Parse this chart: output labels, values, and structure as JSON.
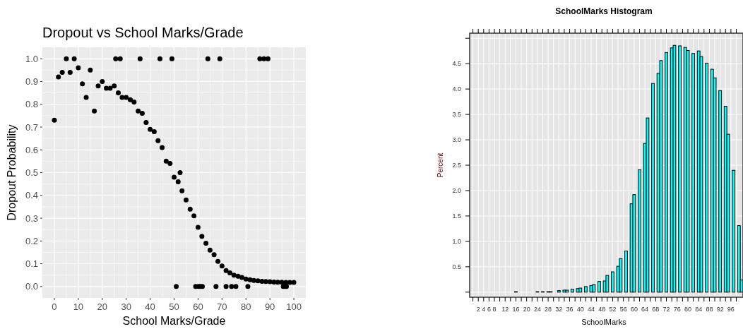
{
  "chart_data": [
    {
      "type": "scatter",
      "title": "Dropout vs School Marks/Grade",
      "xlabel": "School Marks/Grade",
      "ylabel": "Dropout Probability",
      "marker": "circle",
      "grid": true,
      "xlim": [
        -5,
        105
      ],
      "xticks": [
        0,
        10,
        20,
        30,
        40,
        50,
        60,
        70,
        80,
        90,
        100
      ],
      "ylim": [
        -0.05,
        1.05
      ],
      "yticks": [
        {
          "value": 0,
          "label": "0.0"
        },
        {
          "value": 0.1,
          "label": "0.1"
        },
        {
          "value": 0.2,
          "label": "0.2"
        },
        {
          "value": 0.3,
          "label": "0.3"
        },
        {
          "value": 0.4,
          "label": "0.4"
        },
        {
          "value": 0.5,
          "label": "0.5"
        },
        {
          "value": 0.6,
          "label": "0.6"
        },
        {
          "value": 0.7,
          "label": "0.7"
        },
        {
          "value": 0.8,
          "label": "0.8"
        },
        {
          "value": 0.9,
          "label": "0.9"
        },
        {
          "value": 1,
          "label": "1.0"
        }
      ],
      "series": [
        {
          "color": "#000000",
          "x": [
            0,
            1.7,
            3.3,
            5,
            6.6,
            8.3,
            10,
            11.7,
            13.3,
            15,
            16.7,
            18.3,
            20,
            21.7,
            23.3,
            25,
            25.6,
            26.7,
            27.5,
            28.3,
            30,
            31.7,
            33.3,
            35,
            35.8,
            36.7,
            38.3,
            40,
            41.7,
            43.3,
            44.1,
            45,
            46.7,
            48.3,
            49.1,
            50,
            51.7,
            52.5,
            53.3,
            55,
            56.7,
            58.3,
            60,
            61.6,
            63.3,
            65,
            66.7,
            68.3,
            70,
            71.7,
            73.3,
            75,
            76.7,
            78.3,
            80,
            81.7,
            83.3,
            85,
            86.7,
            88.3,
            90,
            91.7,
            93.3,
            95,
            96.7,
            98.3,
            100,
            64.1,
            69.1,
            85.8,
            87.5,
            89.2,
            50.9,
            59,
            60.2,
            61,
            61.8,
            67.5,
            71.7,
            74,
            75.8,
            80.8,
            95.6,
            96.3,
            96.9
          ],
          "values": [
            0.73,
            0.92,
            0.94,
            1,
            0.94,
            1,
            0.96,
            0.89,
            0.83,
            0.95,
            0.77,
            0.88,
            0.9,
            0.87,
            0.87,
            0.88,
            1,
            0.85,
            1,
            0.83,
            0.83,
            0.82,
            0.81,
            0.77,
            1,
            0.76,
            0.72,
            0.69,
            0.68,
            0.64,
            1,
            0.61,
            0.55,
            0.54,
            1,
            0.48,
            0.46,
            0.5,
            0.42,
            0.38,
            0.34,
            0.31,
            0.26,
            0.22,
            0.19,
            0.16,
            0.14,
            0.11,
            0.09,
            0.07,
            0.06,
            0.05,
            0.045,
            0.04,
            0.033,
            0.03,
            0.027,
            0.025,
            0.023,
            0.022,
            0.021,
            0.02,
            0.019,
            0.019,
            0.018,
            0.018,
            0.018,
            1,
            1,
            1,
            1,
            1,
            0,
            0,
            0,
            0,
            0,
            0,
            0,
            0,
            0,
            0,
            0,
            0,
            0
          ]
        }
      ]
    },
    {
      "type": "histogram",
      "title": "SchoolMarks Histogram",
      "xlabel": "SchoolMarks",
      "ylabel": "Percent",
      "grid": true,
      "color": "#00ffff",
      "xlim": [
        -1.2,
        100.5
      ],
      "ylim": [
        -0.1,
        5.1
      ],
      "xticks": [
        {
          "value": 0,
          "label": null
        },
        {
          "value": 2,
          "label": "2"
        },
        {
          "value": 4,
          "label": "4"
        },
        {
          "value": 6,
          "label": "6"
        },
        {
          "value": 8,
          "label": "8"
        },
        {
          "value": 10,
          "label": null
        },
        {
          "value": 12,
          "label": "12"
        },
        {
          "value": 14,
          "label": null
        },
        {
          "value": 16,
          "label": "16"
        },
        {
          "value": 18,
          "label": null
        },
        {
          "value": 20,
          "label": "20"
        },
        {
          "value": 22,
          "label": null
        },
        {
          "value": 24,
          "label": "24"
        },
        {
          "value": 26,
          "label": null
        },
        {
          "value": 28,
          "label": "28"
        },
        {
          "value": 30,
          "label": null
        },
        {
          "value": 32,
          "label": "32"
        },
        {
          "value": 34,
          "label": null
        },
        {
          "value": 36,
          "label": "36"
        },
        {
          "value": 38,
          "label": null
        },
        {
          "value": 40,
          "label": "40"
        },
        {
          "value": 42,
          "label": null
        },
        {
          "value": 44,
          "label": "44"
        },
        {
          "value": 46,
          "label": null
        },
        {
          "value": 48,
          "label": "48"
        },
        {
          "value": 50,
          "label": null
        },
        {
          "value": 52,
          "label": "52"
        },
        {
          "value": 54,
          "label": null
        },
        {
          "value": 56,
          "label": "56"
        },
        {
          "value": 58,
          "label": null
        },
        {
          "value": 60,
          "label": "60"
        },
        {
          "value": 62,
          "label": null
        },
        {
          "value": 64,
          "label": "64"
        },
        {
          "value": 66,
          "label": null
        },
        {
          "value": 68,
          "label": "68"
        },
        {
          "value": 70,
          "label": null
        },
        {
          "value": 72,
          "label": "72"
        },
        {
          "value": 74,
          "label": null
        },
        {
          "value": 76,
          "label": "76"
        },
        {
          "value": 78,
          "label": null
        },
        {
          "value": 80,
          "label": "80"
        },
        {
          "value": 82,
          "label": null
        },
        {
          "value": 84,
          "label": "84"
        },
        {
          "value": 86,
          "label": null
        },
        {
          "value": 88,
          "label": "88"
        },
        {
          "value": 90,
          "label": null
        },
        {
          "value": 92,
          "label": "92"
        },
        {
          "value": 94,
          "label": null
        },
        {
          "value": 96,
          "label": "96"
        },
        {
          "value": 98,
          "label": null
        }
      ],
      "yticks": [
        {
          "value": 0,
          "label": null
        },
        {
          "value": 0.5,
          "label": "0.5"
        },
        {
          "value": 1,
          "label": "1.0"
        },
        {
          "value": 1.5,
          "label": "1.5"
        },
        {
          "value": 2,
          "label": "2.0"
        },
        {
          "value": 2.5,
          "label": "2.5"
        },
        {
          "value": 3,
          "label": "3.0"
        },
        {
          "value": 3.5,
          "label": "3.5"
        },
        {
          "value": 4,
          "label": "4.0"
        },
        {
          "value": 4.5,
          "label": "4.5"
        },
        {
          "value": 5,
          "label": null
        }
      ],
      "bins": [
        -0.5,
        0.5,
        1.5,
        2.5,
        3.5,
        4.5,
        5.5,
        6.5,
        7.5,
        8.5,
        9.5,
        10.5,
        11.5,
        12.5,
        13.5,
        14.5,
        15.5,
        16.5,
        17.5,
        18.5,
        19.5,
        20.5,
        21.5,
        22.5,
        23.5,
        24.5,
        25.5,
        26.5,
        27.5,
        28.5,
        29.5,
        30.5,
        31.5,
        32.5,
        33.5,
        34.5,
        35.5,
        36.5,
        37.5,
        38.5,
        39.5,
        40.5,
        41.5,
        42.5,
        43.5,
        44.5,
        45.5,
        46.5,
        47.5,
        48.5,
        49.5,
        50.5,
        51.5,
        52.5,
        53.5,
        54.5,
        55.5,
        56.5,
        57.5,
        58.5,
        59.5,
        60.5,
        61.5,
        62.5,
        63.5,
        64.5,
        65.5,
        66.5,
        67.5,
        68.5,
        69.5,
        70.5,
        71.5,
        72.5,
        73.5,
        74.5,
        75.5,
        76.5,
        77.5,
        78.5,
        79.5,
        80.5,
        81.5,
        82.5,
        83.5,
        84.5,
        85.5,
        86.5,
        87.5,
        88.5,
        89.5,
        90.5,
        91.5,
        92.5,
        93.5,
        94.5,
        95.5,
        96.5,
        97.5,
        98.5,
        99.5,
        100.5
      ],
      "values": [
        0,
        0,
        0,
        0,
        0,
        0,
        0,
        0,
        0,
        0,
        0,
        0,
        0,
        0,
        0,
        0,
        0.01,
        0,
        0,
        0,
        0,
        0,
        0,
        0,
        0.01,
        0,
        0.01,
        0,
        0.01,
        0.01,
        0,
        0,
        0.03,
        0,
        0.04,
        0.04,
        0,
        0.06,
        0,
        0.07,
        0.08,
        0,
        0.11,
        0,
        0.13,
        0.15,
        0,
        0.21,
        0,
        0.22,
        0.33,
        0,
        0.4,
        0,
        0.51,
        0.66,
        0,
        0.81,
        0,
        1.74,
        1.92,
        0,
        2.41,
        0,
        2.93,
        3.43,
        0,
        4.11,
        0,
        4.31,
        4.56,
        0,
        4.72,
        0,
        4.81,
        4.86,
        0,
        4.85,
        0,
        4.82,
        4.76,
        0,
        4.7,
        0,
        4.75,
        4.64,
        0,
        4.51,
        0,
        4.39,
        4.22,
        0,
        3.97,
        0,
        3.66,
        3.11,
        0,
        2.4,
        0,
        1.31,
        0.24
      ]
    }
  ]
}
